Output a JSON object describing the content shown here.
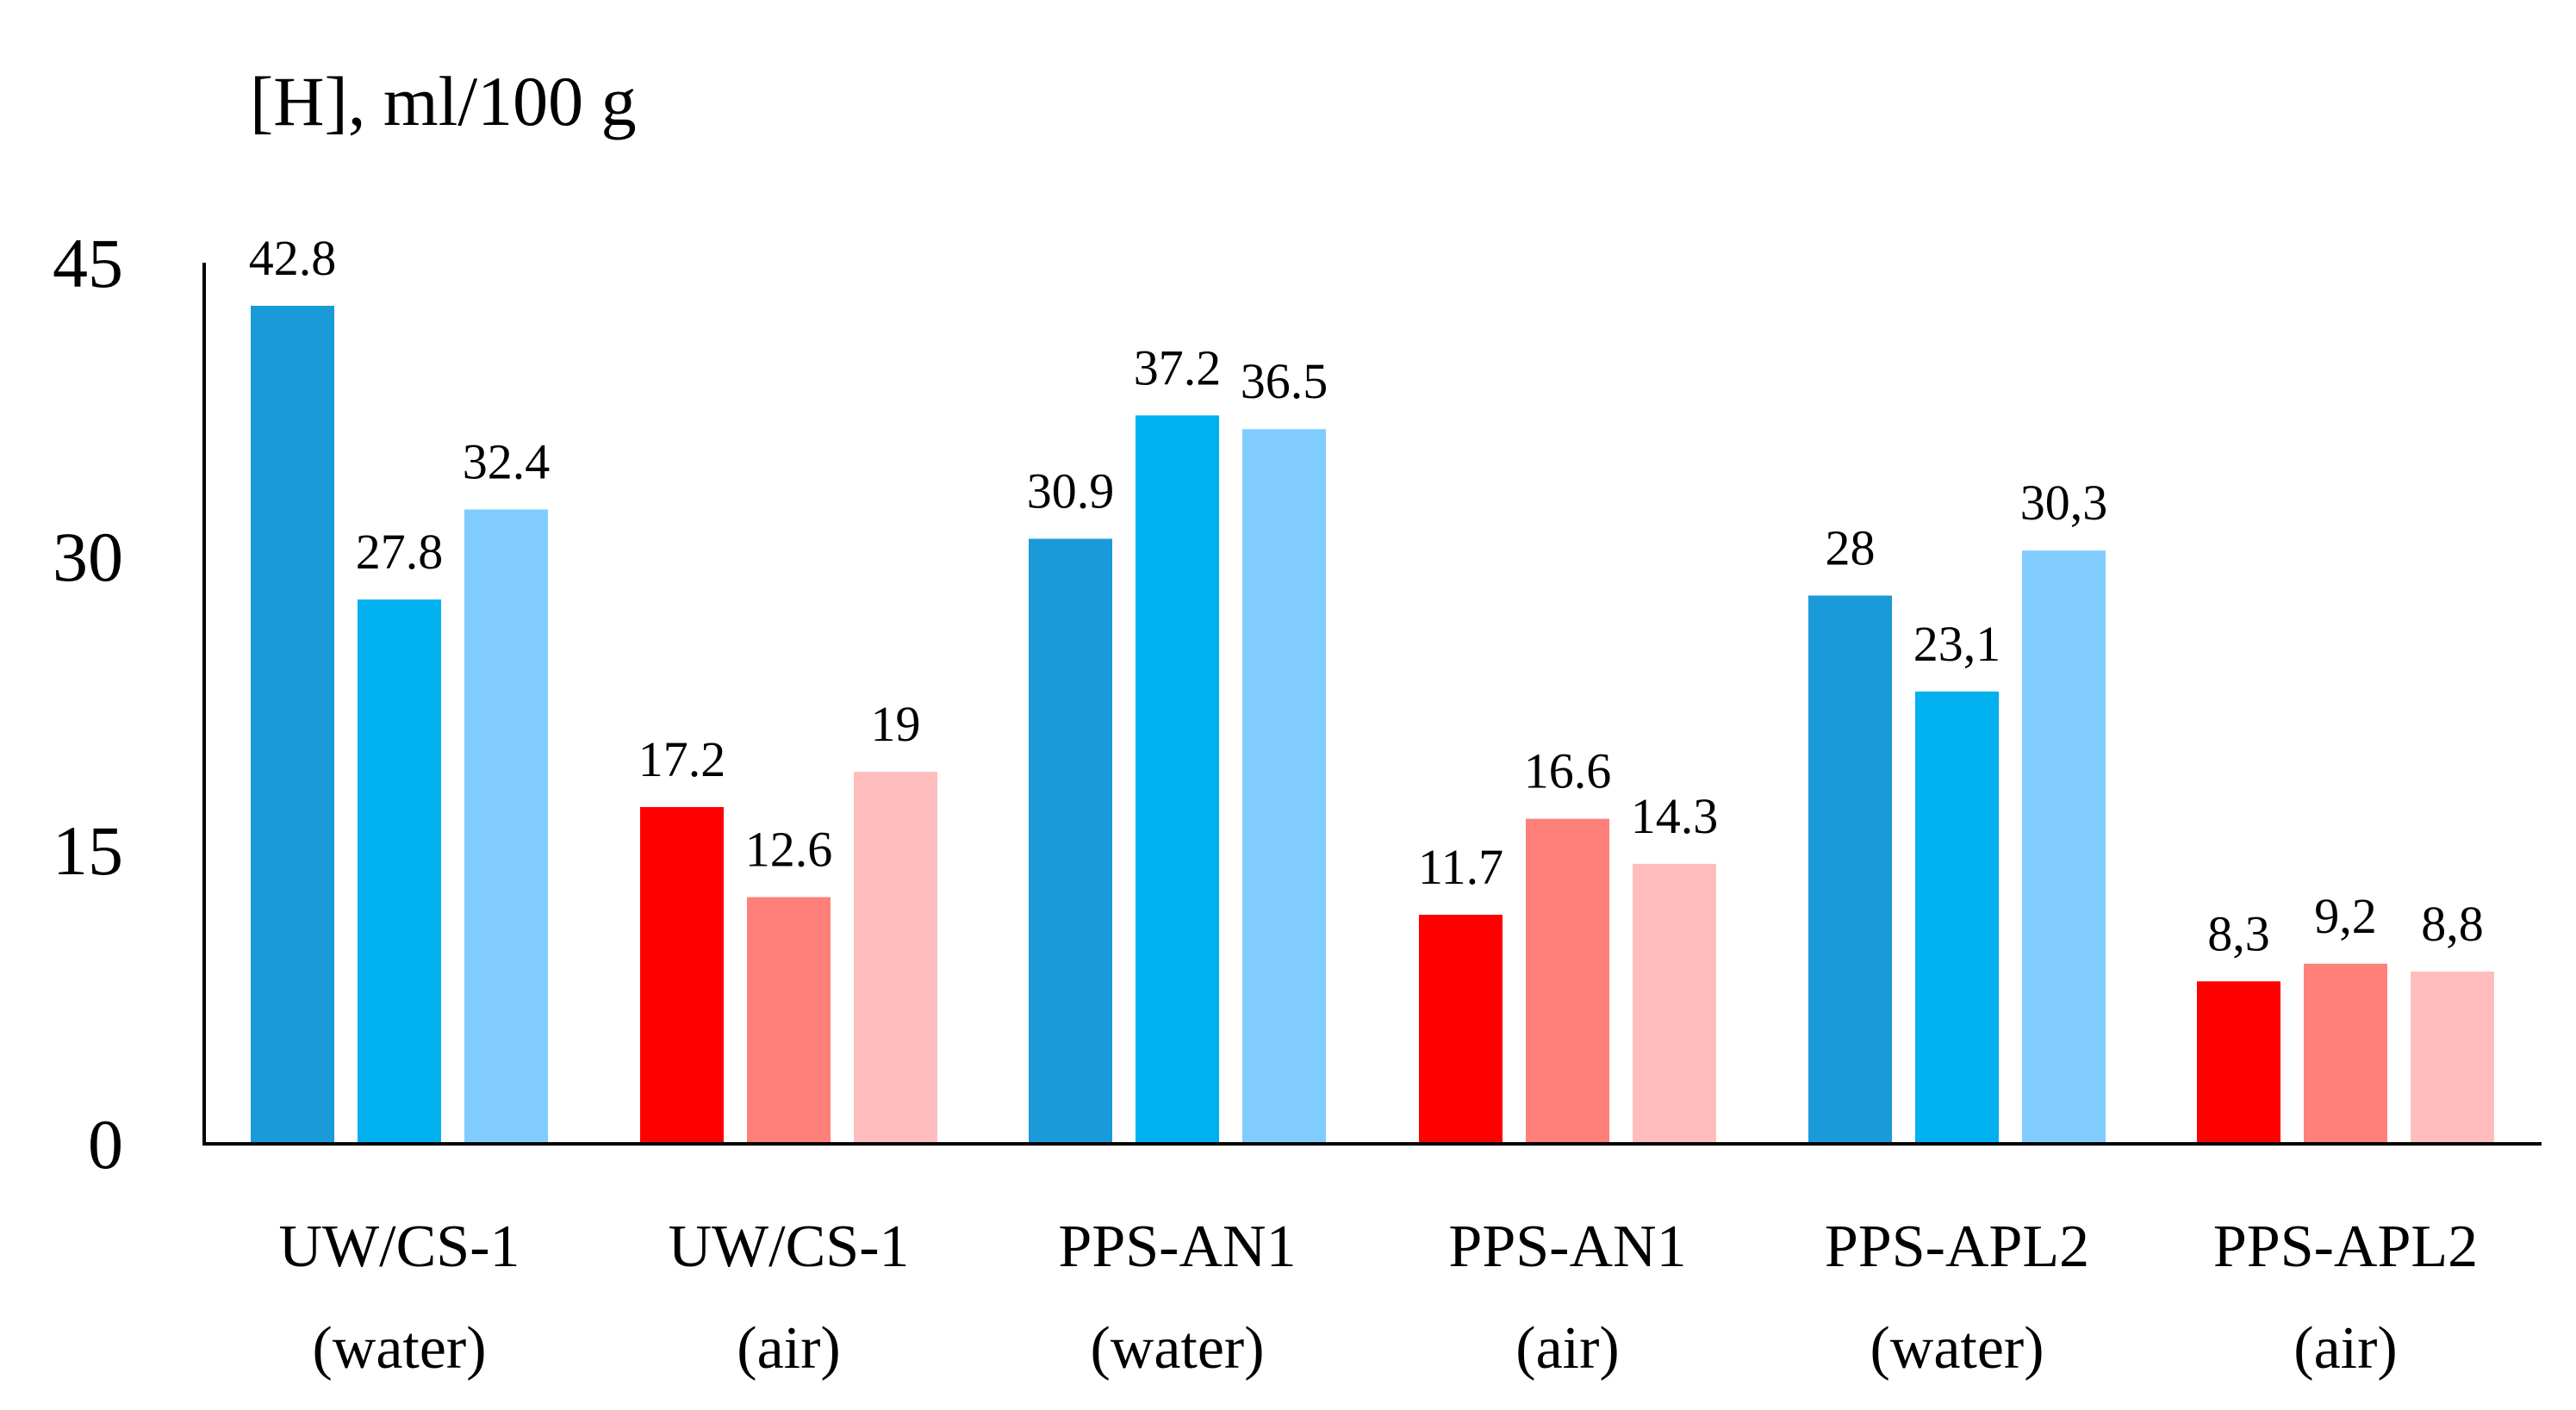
{
  "chart_data": {
    "type": "bar",
    "title": "",
    "xlabel": "",
    "ylabel": "[H], ml/100 g",
    "ylim": [
      0,
      45
    ],
    "yticks": [
      "0",
      "15",
      "30",
      "45"
    ],
    "grid": false,
    "legend": "none",
    "categories": [
      {
        "line1": "UW/CS-1",
        "line2": "(water)",
        "medium": "water"
      },
      {
        "line1": "UW/CS-1",
        "line2": "(air)",
        "medium": "air"
      },
      {
        "line1": "PPS-AN1",
        "line2": "(water)",
        "medium": "water"
      },
      {
        "line1": "PPS-AN1",
        "line2": "(air)",
        "medium": "air"
      },
      {
        "line1": "PPS-APL2",
        "line2": "(water)",
        "medium": "water"
      },
      {
        "line1": "PPS-APL2",
        "line2": "(air)",
        "medium": "air"
      }
    ],
    "groups": [
      {
        "values": [
          42.8,
          27.8,
          32.4
        ],
        "labels": [
          "42.8",
          "27.8",
          "32.4"
        ]
      },
      {
        "values": [
          17.2,
          12.6,
          19
        ],
        "labels": [
          "17.2",
          "12.6",
          "19"
        ]
      },
      {
        "values": [
          30.9,
          37.2,
          36.5
        ],
        "labels": [
          "30.9",
          "37.2",
          "36.5"
        ]
      },
      {
        "values": [
          11.7,
          16.6,
          14.3
        ],
        "labels": [
          "11.7",
          "16.6",
          "14.3"
        ]
      },
      {
        "values": [
          28,
          23.1,
          30.3
        ],
        "labels": [
          "28",
          "23,1",
          "30,3"
        ]
      },
      {
        "values": [
          8.3,
          9.2,
          8.8
        ],
        "labels": [
          "8,3",
          "9,2",
          "8,8"
        ]
      }
    ],
    "colors": {
      "water": [
        "#1a9ad8",
        "#00b0ef",
        "#80ccff"
      ],
      "air": [
        "#ff0000",
        "#ff7f7b",
        "#ffbdbd"
      ],
      "axis": "#000000"
    }
  }
}
